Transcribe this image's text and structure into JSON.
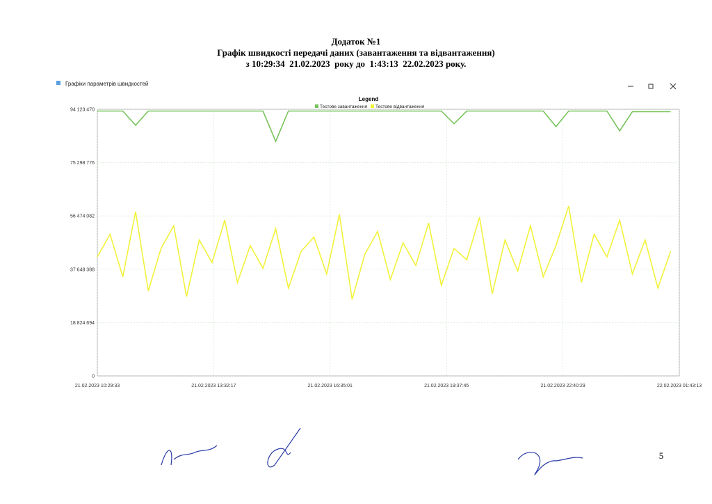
{
  "header": {
    "appendix": "Додаток №1",
    "title": "Графік швидкості передачі даних (завантаження та відвантаження)",
    "period": "з 10:29:34  21.02.2023  року до  1:43:13  22.02.2023 року."
  },
  "window_title": "Графіки параметрів швидкостей",
  "page_number": "5",
  "chart_data": {
    "type": "line",
    "legend_title": "Legend",
    "grid": true,
    "x": [
      "21.02.2023 10:29:33",
      "21.02.2023 10:49:33",
      "21.02.2023 11:09:33",
      "21.02.2023 11:29:33",
      "21.02.2023 11:49:33",
      "21.02.2023 12:09:33",
      "21.02.2023 12:29:33",
      "21.02.2023 12:49:33",
      "21.02.2023 13:09:33",
      "21.02.2023 13:29:33",
      "21.02.2023 13:49:33",
      "21.02.2023 14:09:33",
      "21.02.2023 14:29:33",
      "21.02.2023 14:49:33",
      "21.02.2023 15:09:33",
      "21.02.2023 15:29:33",
      "21.02.2023 15:49:33",
      "21.02.2023 16:09:33",
      "21.02.2023 16:29:33",
      "21.02.2023 16:49:33",
      "21.02.2023 17:09:33",
      "21.02.2023 17:29:33",
      "21.02.2023 17:49:33",
      "21.02.2023 18:09:33",
      "21.02.2023 18:29:33",
      "21.02.2023 18:49:33",
      "21.02.2023 19:09:33",
      "21.02.2023 19:29:33",
      "21.02.2023 19:49:33",
      "21.02.2023 20:09:33",
      "21.02.2023 20:29:33",
      "21.02.2023 20:49:33",
      "21.02.2023 21:09:33",
      "21.02.2023 21:29:33",
      "21.02.2023 21:49:33",
      "21.02.2023 22:09:33",
      "21.02.2023 22:29:33",
      "21.02.2023 22:49:33",
      "21.02.2023 23:09:33",
      "21.02.2023 23:29:33",
      "21.02.2023 23:49:33",
      "22.02.2023 00:09:33",
      "22.02.2023 00:29:33",
      "22.02.2023 00:49:33",
      "22.02.2023 01:09:33",
      "22.02.2023 01:29:33"
    ],
    "xlim": [
      "21.02.2023 10:29:33",
      "22.02.2023 01:43:13"
    ],
    "xticks": [
      "21.02.2023 10:29:33",
      "21.02.2023 13:32:17",
      "21.02.2023 16:35:01",
      "21.02.2023 19:37:45",
      "21.02.2023 22:40:29",
      "22.02.2023 01:43:13"
    ],
    "ylim": [
      0,
      94123470
    ],
    "yticks": [
      0,
      {
        "value": 18824694,
        "label": "18 824 694"
      },
      {
        "value": 37648388,
        "label": "37 648 388"
      },
      {
        "value": 56474082,
        "label": "56 474 082"
      },
      {
        "value": 75298776,
        "label": "75 298 776"
      },
      {
        "value": 94123470,
        "label": "94 123 470"
      }
    ],
    "series": [
      {
        "name": "Тестове завантаження",
        "color": "#77c35a",
        "values": [
          93500000,
          93500000,
          93500000,
          88500000,
          93500000,
          93500000,
          93500000,
          93500000,
          93500000,
          93500000,
          93500000,
          93500000,
          93500000,
          93500000,
          82800000,
          93500000,
          93500000,
          93500000,
          93500000,
          93500000,
          93500000,
          93500000,
          93500000,
          93500000,
          93500000,
          93500000,
          93500000,
          93500000,
          89000000,
          93500000,
          93500000,
          93500000,
          93500000,
          93500000,
          93500000,
          93500000,
          88000000,
          93500000,
          93500000,
          93500000,
          93500000,
          86500000,
          93300000,
          93300000,
          93300000,
          93300000
        ]
      },
      {
        "name": "Тестове відвантаження",
        "color": "#f2f23a",
        "values": [
          42000000,
          50000000,
          35000000,
          58000000,
          30000000,
          45000000,
          53000000,
          28000000,
          48000000,
          40000000,
          55000000,
          33000000,
          46000000,
          38000000,
          52000000,
          31000000,
          44000000,
          49000000,
          36000000,
          57000000,
          27000000,
          43000000,
          51000000,
          34000000,
          47000000,
          39000000,
          54000000,
          32000000,
          45000000,
          41000000,
          56000000,
          29000000,
          48000000,
          37000000,
          53000000,
          35000000,
          46000000,
          60000000,
          33000000,
          50000000,
          42000000,
          55000000,
          36000000,
          48000000,
          31000000,
          44000000
        ]
      }
    ]
  }
}
